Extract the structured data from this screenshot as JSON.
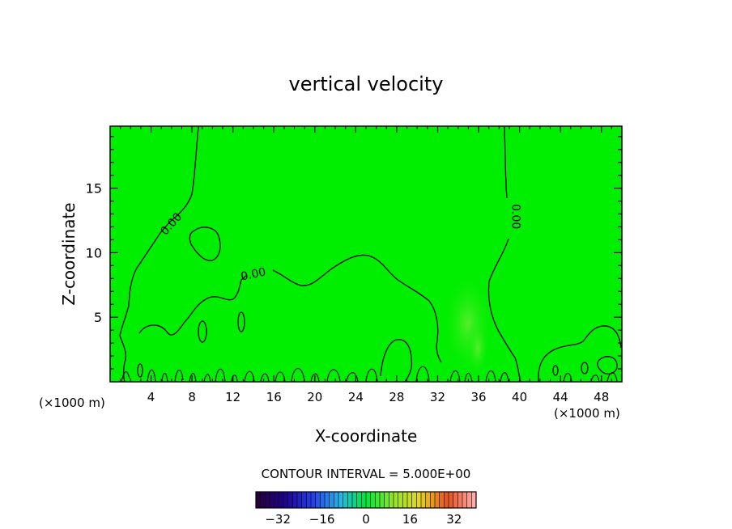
{
  "chart_data": {
    "type": "contour",
    "title": "vertical velocity",
    "xlabel": "X-coordinate",
    "ylabel": "Z-coordinate",
    "x_unit_left": "(×1000 m)",
    "x_unit_right": "(×1000 m)",
    "x_ticks": [
      4,
      8,
      12,
      16,
      20,
      24,
      28,
      32,
      36,
      40,
      44,
      48
    ],
    "y_ticks": [
      5,
      10,
      15
    ],
    "xlim": [
      0,
      50
    ],
    "ylim": [
      0,
      19.8
    ],
    "contour_level_labels": [
      {
        "text": "0.00",
        "x": 6.0,
        "y": 12.2,
        "angle": -48
      },
      {
        "text": "0.00",
        "x": 14.0,
        "y": 8.3,
        "angle": -12
      },
      {
        "text": "0.00",
        "x": 39.6,
        "y": 12.8,
        "angle": 90
      }
    ],
    "contour_interval_text": "CONTOUR INTERVAL = 5.000E+00",
    "colorbar": {
      "vmin": -40,
      "vmax": 40,
      "tick_labels": [
        -32,
        -16,
        0,
        16,
        32
      ]
    },
    "colors": {
      "field_background": "#00ee00",
      "contour_line": "#000000"
    }
  }
}
